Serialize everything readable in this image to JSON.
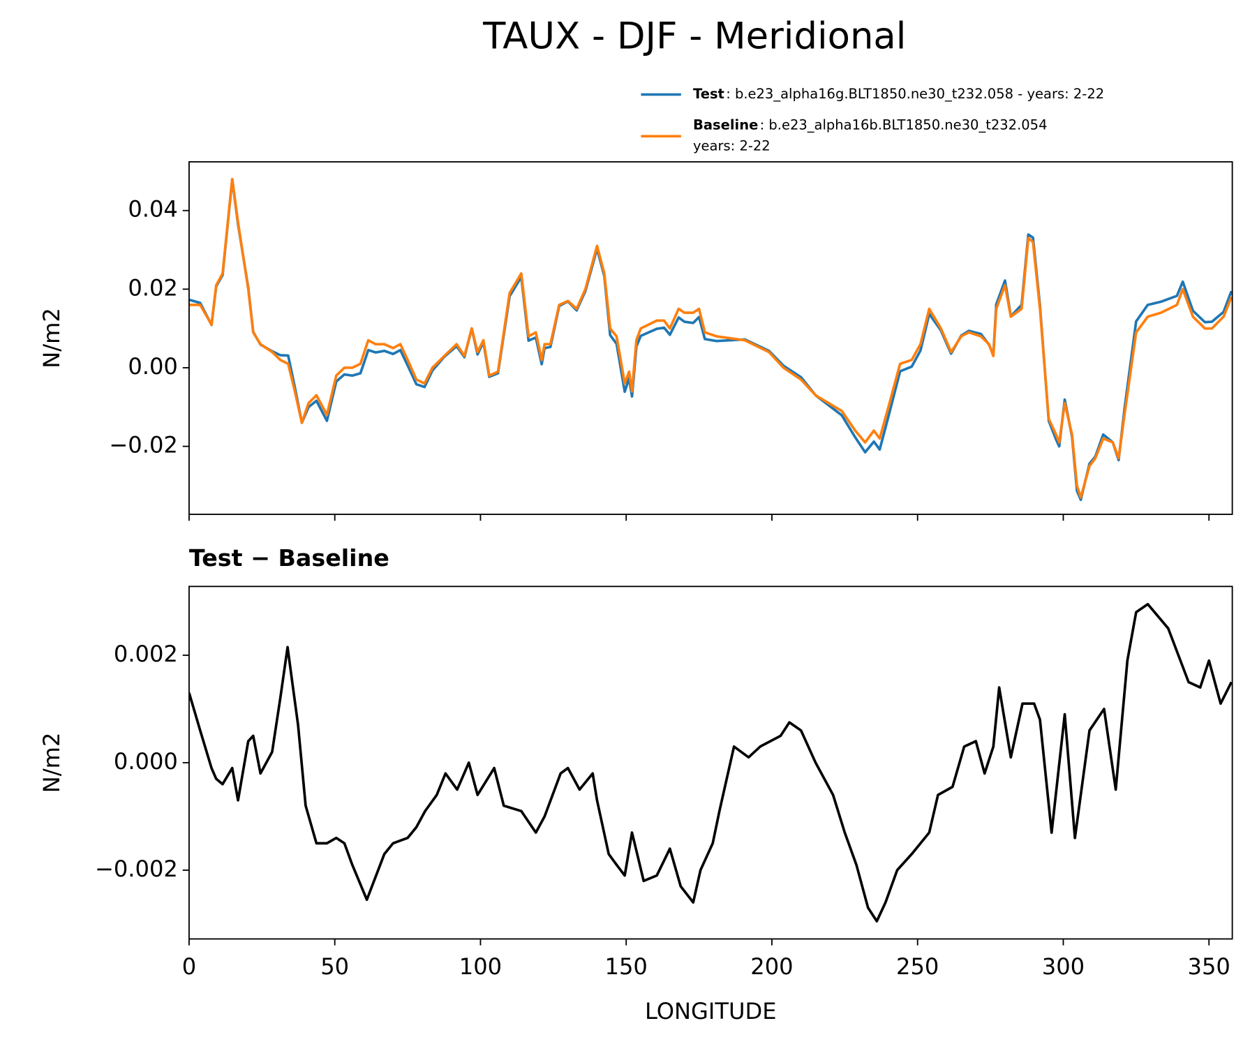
{
  "chart_data": [
    {
      "type": "line",
      "title": "TAUX - DJF - Meridional",
      "ylabel": "N/m2",
      "x": [
        0,
        3.8,
        7.7,
        9.3,
        11.5,
        14.8,
        16.8,
        20.3,
        22,
        24.5,
        28.5,
        31.3,
        34,
        36.3,
        38.7,
        41,
        43.7,
        47.3,
        50.5,
        53.3,
        56,
        58.8,
        61.5,
        64,
        67,
        70,
        72.5,
        75,
        78,
        80.8,
        83.5,
        87.6,
        91.8,
        94.5,
        97,
        99,
        101,
        103,
        106,
        110,
        114,
        116.5,
        119,
        121,
        122,
        124,
        127,
        130,
        133,
        136,
        140,
        142.5,
        144.5,
        146.7,
        149.5,
        151,
        152,
        153.5,
        155,
        160.5,
        163,
        165,
        168,
        170,
        173,
        175,
        177,
        181,
        190.7,
        199,
        204,
        210,
        215,
        224,
        228.6,
        232,
        235,
        237,
        240,
        244,
        248,
        251,
        254,
        258,
        261.5,
        265,
        267.6,
        271.7,
        274.5,
        276,
        277,
        280,
        282,
        285.7,
        288,
        289.6,
        292,
        295,
        297.5,
        298.6,
        300.5,
        303,
        304.7,
        306,
        309,
        311,
        313.7,
        317,
        319,
        321,
        325,
        329,
        333.5,
        339,
        341,
        344.5,
        348.6,
        351,
        355,
        357.7
      ],
      "series": [
        {
          "name": "Test",
          "description": [
            ": b.e23_alpha16g.BLT1850.ne30_t232.058 - years: 2-22"
          ],
          "color": "#1f77b4",
          "values": [
            0.0173,
            0.0165,
            0.0109,
            0.0207,
            0.0236,
            0.0479,
            0.0365,
            0.0204,
            0.0091,
            0.0059,
            0.0042,
            0.0032,
            0.0031,
            -0.005,
            -0.014,
            -0.01,
            -0.0084,
            -0.0135,
            -0.0035,
            -0.0017,
            -0.002,
            -0.0014,
            0.0045,
            0.0039,
            0.0043,
            0.0035,
            0.0045,
            0.0006,
            -0.0042,
            -0.0049,
            -0.0007,
            0.0028,
            0.0055,
            0.0027,
            0.01,
            0.0034,
            0.0065,
            -0.0023,
            -0.0014,
            0.0182,
            0.0231,
            0.0069,
            0.0077,
            0.0009,
            0.005,
            0.0053,
            0.0157,
            0.0169,
            0.0146,
            0.0195,
            0.0303,
            0.0233,
            0.0083,
            0.0061,
            -0.0061,
            -0.0027,
            -0.0073,
            0.0054,
            0.0081,
            0.0099,
            0.0102,
            0.0084,
            0.0128,
            0.0117,
            0.0114,
            0.0129,
            0.0073,
            0.0068,
            0.0072,
            0.0043,
            0.0005,
            -0.0024,
            -0.007,
            -0.0121,
            -0.0177,
            -0.0215,
            -0.0188,
            -0.0208,
            -0.0124,
            -0.0009,
            0.0003,
            0.0044,
            0.0137,
            0.0095,
            0.0036,
            0.0082,
            0.0094,
            0.0086,
            0.0059,
            0.0033,
            0.0161,
            0.0222,
            0.0131,
            0.016,
            0.0339,
            0.0331,
            0.0158,
            -0.0135,
            -0.0182,
            -0.02,
            -0.0081,
            -0.0175,
            -0.0313,
            -0.0336,
            -0.0244,
            -0.0226,
            -0.017,
            -0.019,
            -0.0235,
            -0.0105,
            0.0118,
            0.016,
            0.0168,
            0.0183,
            0.0219,
            0.0145,
            0.0116,
            0.0117,
            0.0142,
            0.0195
          ]
        },
        {
          "name": "Baseline",
          "description": [
            ": b.e23_alpha16b.BLT1850.ne30_t232.054",
            "years: 2-22"
          ],
          "color": "#ff7f0e",
          "values": [
            0.016,
            0.016,
            0.011,
            0.021,
            0.024,
            0.048,
            0.037,
            0.02,
            0.009,
            0.006,
            0.004,
            0.002,
            0.001,
            -0.006,
            -0.014,
            -0.009,
            -0.007,
            -0.012,
            -0.002,
            0.0,
            0.0,
            0.001,
            0.007,
            0.006,
            0.006,
            0.005,
            0.006,
            0.002,
            -0.003,
            -0.004,
            0.0,
            0.003,
            0.006,
            0.003,
            0.01,
            0.004,
            0.007,
            -0.002,
            -0.001,
            0.019,
            0.024,
            0.008,
            0.009,
            0.002,
            0.006,
            0.006,
            0.016,
            0.017,
            0.015,
            0.02,
            0.031,
            0.024,
            0.01,
            0.008,
            -0.004,
            -0.001,
            -0.006,
            0.007,
            0.01,
            0.012,
            0.012,
            0.01,
            0.015,
            0.014,
            0.014,
            0.015,
            0.009,
            0.008,
            0.007,
            0.004,
            0.0,
            -0.003,
            -0.007,
            -0.011,
            -0.016,
            -0.019,
            -0.016,
            -0.018,
            -0.01,
            0.001,
            0.002,
            0.006,
            0.015,
            0.01,
            0.004,
            0.008,
            0.009,
            0.008,
            0.006,
            0.003,
            0.015,
            0.021,
            0.013,
            0.015,
            0.033,
            0.032,
            0.015,
            -0.013,
            -0.017,
            -0.019,
            -0.009,
            -0.017,
            -0.03,
            -0.033,
            -0.025,
            -0.023,
            -0.018,
            -0.019,
            -0.023,
            -0.012,
            0.009,
            0.013,
            0.014,
            0.016,
            0.02,
            0.013,
            0.01,
            0.01,
            0.013,
            0.018
          ]
        }
      ],
      "xlim": [
        0,
        358
      ],
      "xticks": [
        0,
        50,
        100,
        150,
        200,
        250,
        300,
        350
      ],
      "ylim": [
        -0.0373,
        0.0524
      ],
      "yticks": [
        {
          "value": -0.02,
          "label": "−0.02"
        },
        {
          "value": 0,
          "label": "0.00"
        },
        {
          "value": 0.02,
          "label": "0.02"
        },
        {
          "value": 0.04,
          "label": "0.04"
        }
      ],
      "grid": false,
      "legend": "upper right"
    },
    {
      "type": "line",
      "title": "Test − Baseline",
      "ylabel": "N/m2",
      "xlabel": "LONGITUDE",
      "x": [
        0,
        3.8,
        7.7,
        9.3,
        11.5,
        14.8,
        16.8,
        20.3,
        22,
        24.5,
        28.5,
        31.3,
        33.8,
        35.4,
        37.4,
        40,
        43.7,
        47.3,
        50.5,
        53.3,
        56,
        61,
        67,
        70,
        75,
        78,
        81,
        85,
        88,
        92,
        96,
        99,
        104.7,
        108,
        114,
        119,
        122,
        127.5,
        130,
        134,
        138.5,
        140,
        144,
        146.7,
        149.5,
        152,
        156,
        160.5,
        165,
        168.7,
        173,
        175.5,
        179.7,
        182,
        187,
        192,
        196,
        203,
        206,
        210,
        215,
        221,
        225,
        229,
        233,
        236,
        239,
        243,
        248,
        254,
        257,
        262,
        266,
        270,
        273,
        276,
        278,
        282,
        286,
        290,
        292,
        296,
        300.5,
        304,
        309,
        314,
        318,
        322,
        325,
        329,
        336,
        343,
        347,
        350,
        354,
        357.7
      ],
      "series": [
        {
          "name": "Test − Baseline",
          "color": "#000000",
          "values": [
            0.0013,
            0.0006,
            -0.0001,
            -0.0003,
            -0.0004,
            -0.0001,
            -0.0007,
            0.0004,
            0.0005,
            -0.0002,
            0.0002,
            0.0012,
            0.00215,
            0.0015,
            0.0007,
            -0.0008,
            -0.0015,
            -0.0015,
            -0.0014,
            -0.0015,
            -0.0019,
            -0.00255,
            -0.0017,
            -0.0015,
            -0.0014,
            -0.0012,
            -0.0009,
            -0.0006,
            -0.0002,
            -0.0005,
            0.0,
            -0.0006,
            -0.0001,
            -0.0008,
            -0.0009,
            -0.0013,
            -0.001,
            -0.0002,
            -0.0001,
            -0.0005,
            -0.0002,
            -0.0007,
            -0.0017,
            -0.0019,
            -0.0021,
            -0.0013,
            -0.0022,
            -0.0021,
            -0.0016,
            -0.0023,
            -0.0026,
            -0.002,
            -0.0015,
            -0.0009,
            0.0003,
            0.0001,
            0.0003,
            0.0005,
            0.00075,
            0.0006,
            0.0,
            -0.0006,
            -0.0013,
            -0.0019,
            -0.0027,
            -0.00295,
            -0.0026,
            -0.002,
            -0.0017,
            -0.0013,
            -0.0006,
            -0.00045,
            0.0003,
            0.0004,
            -0.0002,
            0.0003,
            0.0014,
            0.0001,
            0.0011,
            0.0011,
            0.0008,
            -0.0013,
            0.0009,
            -0.0014,
            0.0006,
            0.001,
            -0.0005,
            0.0019,
            0.0028,
            0.00295,
            0.0025,
            0.0015,
            0.0014,
            0.0019,
            0.0011,
            0.0015
          ]
        }
      ],
      "xlim": [
        0,
        358
      ],
      "xticks": [
        0,
        50,
        100,
        150,
        200,
        250,
        300,
        350
      ],
      "ylim": [
        -0.00328,
        0.00328
      ],
      "yticks": [
        {
          "value": -0.002,
          "label": "−0.002"
        },
        {
          "value": 0,
          "label": "0.000"
        },
        {
          "value": 0.002,
          "label": "0.002"
        }
      ],
      "grid": false
    }
  ]
}
